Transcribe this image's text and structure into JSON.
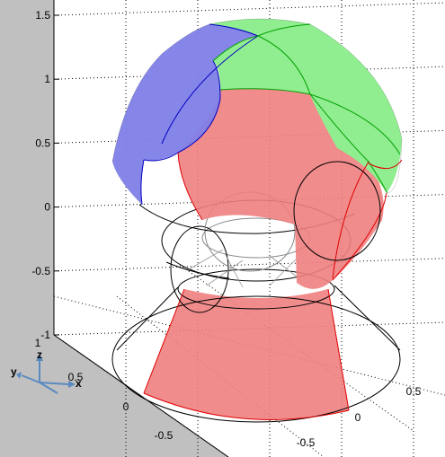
{
  "chart_data": {
    "type": "surface3d",
    "title": "",
    "xlabel": "",
    "ylabel": "",
    "zlabel": "",
    "z_ticks": [
      "1.5",
      "1",
      "0.5",
      "0",
      "-0.5",
      "-1"
    ],
    "x_ticks": [
      "0.5",
      "0",
      "-0.5"
    ],
    "y_ticks": [
      "1",
      "0.5",
      "0",
      "-0.5"
    ],
    "zlim": [
      -1,
      1.5
    ],
    "grid": true,
    "projection": "perspective",
    "shapes": [
      {
        "name": "sphere",
        "center": [
          0,
          0,
          0.75
        ],
        "radius": 0.75,
        "faces": [
          {
            "color": "#8080e8",
            "alpha": 0.85
          },
          {
            "color": "#90ee90",
            "alpha": 1.0
          },
          {
            "color": "#f08080",
            "alpha": 0.9
          }
        ]
      },
      {
        "name": "torus",
        "center": [
          0,
          0,
          0
        ],
        "major_radius": 0.5,
        "minor_radius": 0.25,
        "face_color": "#f08080",
        "wire_color": "#000000"
      },
      {
        "name": "truncated-cone",
        "z": [
          -1,
          -0.5
        ],
        "radius": [
          1.0,
          0.5
        ],
        "face_color": "#f08080",
        "wire_color": "#000000"
      }
    ],
    "axes_triad": {
      "labels": [
        "z",
        "y",
        "x"
      ],
      "color": "#5a8ac0"
    }
  },
  "colors": {
    "background": "#c0c0c0",
    "axes": "#ffffff",
    "grid": "#000000",
    "blue_face": "#8080e8",
    "green_face": "#90ee90",
    "red_face": "#f08080",
    "triad": "#5a8ac0"
  }
}
